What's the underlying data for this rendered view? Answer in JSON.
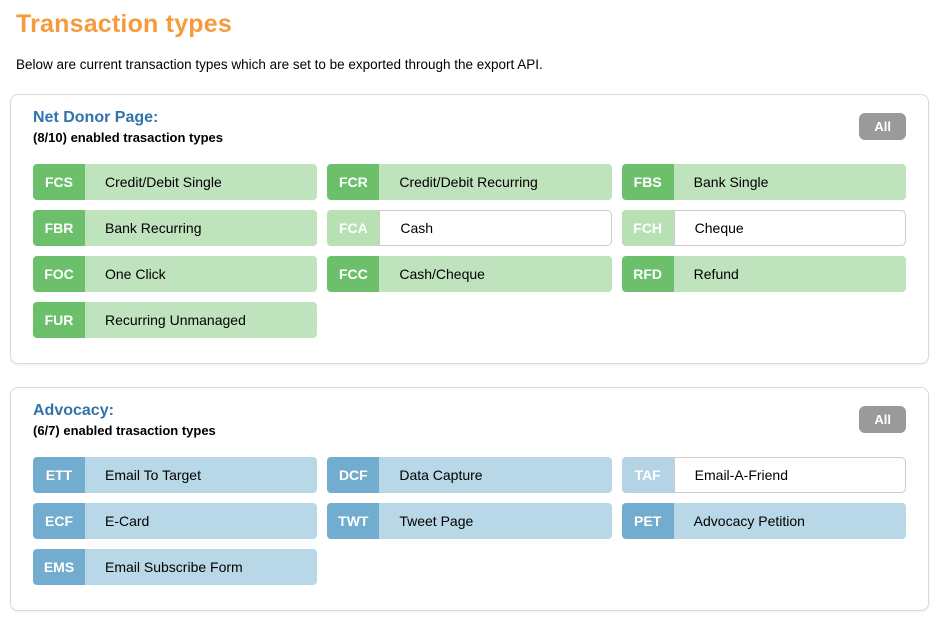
{
  "page": {
    "title": "Transaction types",
    "description": "Below are current transaction types which are set to be exported through the export API."
  },
  "colors": {
    "title_orange": "#f79a3b",
    "header_blue": "#3173ad",
    "green_badge": "#6cc06c",
    "green_body": "#bfe3bc",
    "green_badge_disabled": "#b7e1b3",
    "blue_badge": "#72acce",
    "blue_body": "#b8d8e8",
    "blue_badge_disabled": "#b4d4e6",
    "all_gray": "#9a9a9a"
  },
  "sections": [
    {
      "name": "Net Donor Page:",
      "subtitle": "(8/10) enabled trasaction types",
      "all_button": "All",
      "theme": "green",
      "tiles": [
        {
          "code": "FCS",
          "label": "Credit/Debit Single",
          "enabled": true
        },
        {
          "code": "FCR",
          "label": "Credit/Debit Recurring",
          "enabled": true
        },
        {
          "code": "FBS",
          "label": "Bank Single",
          "enabled": true
        },
        {
          "code": "FBR",
          "label": "Bank Recurring",
          "enabled": true
        },
        {
          "code": "FCA",
          "label": "Cash",
          "enabled": false
        },
        {
          "code": "FCH",
          "label": "Cheque",
          "enabled": false
        },
        {
          "code": "FOC",
          "label": "One Click",
          "enabled": true
        },
        {
          "code": "FCC",
          "label": "Cash/Cheque",
          "enabled": true
        },
        {
          "code": "RFD",
          "label": "Refund",
          "enabled": true
        },
        {
          "code": "FUR",
          "label": "Recurring Unmanaged",
          "enabled": true
        }
      ]
    },
    {
      "name": "Advocacy:",
      "subtitle": "(6/7) enabled trasaction types",
      "all_button": "All",
      "theme": "blue",
      "tiles": [
        {
          "code": "ETT",
          "label": "Email To Target",
          "enabled": true
        },
        {
          "code": "DCF",
          "label": "Data Capture",
          "enabled": true
        },
        {
          "code": "TAF",
          "label": "Email-A-Friend",
          "enabled": false
        },
        {
          "code": "ECF",
          "label": "E-Card",
          "enabled": true
        },
        {
          "code": "TWT",
          "label": "Tweet Page",
          "enabled": true
        },
        {
          "code": "PET",
          "label": "Advocacy Petition",
          "enabled": true
        },
        {
          "code": "EMS",
          "label": "Email Subscribe Form",
          "enabled": true
        }
      ]
    }
  ]
}
